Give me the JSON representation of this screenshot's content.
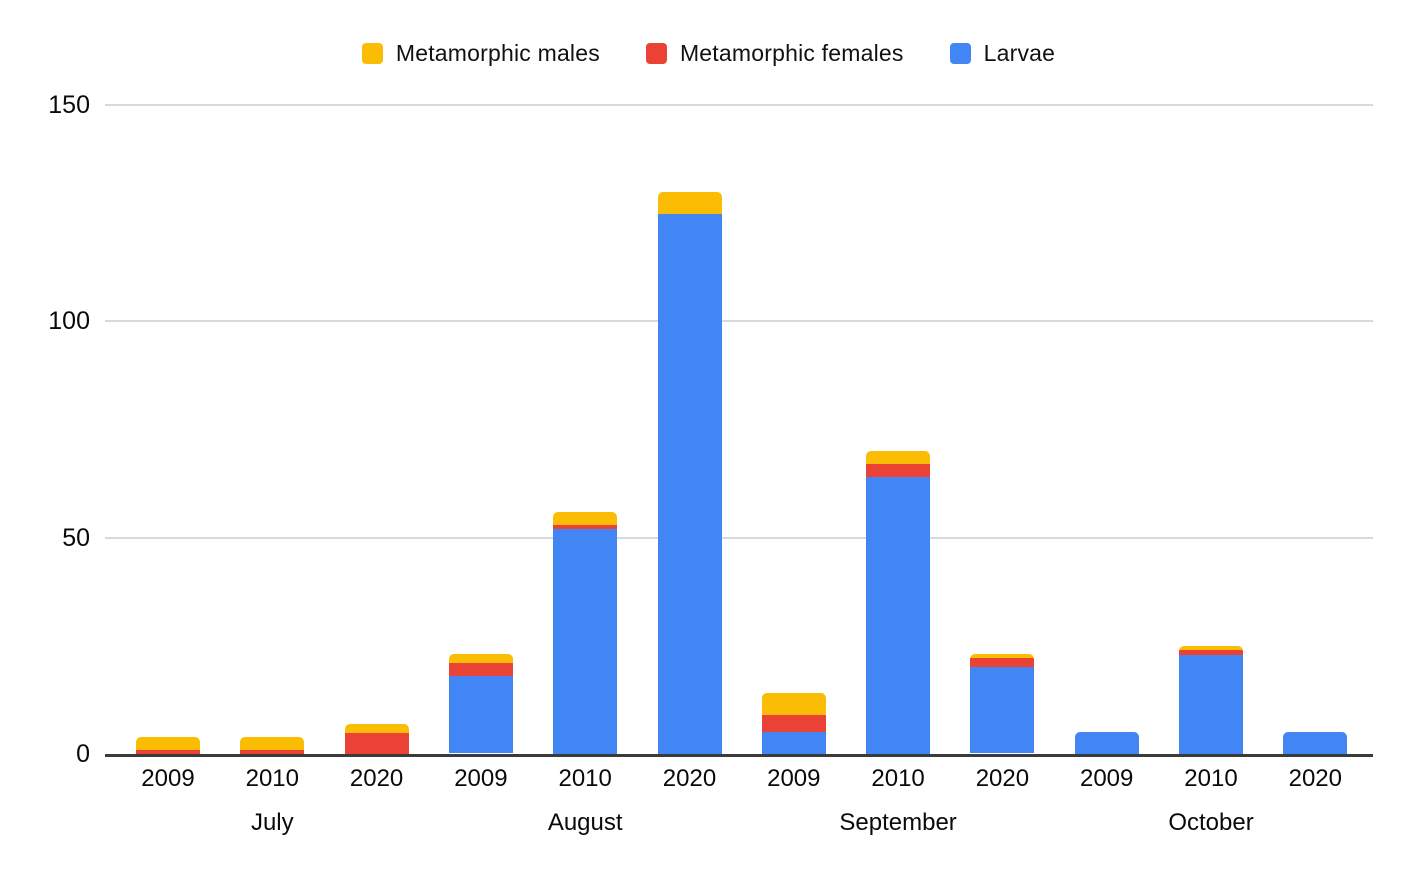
{
  "chart_data": {
    "type": "bar",
    "stacked": true,
    "title": "",
    "xlabel": "",
    "ylabel": "",
    "ylim": [
      0,
      150
    ],
    "yticks": [
      0,
      50,
      100,
      150
    ],
    "grid": true,
    "legend_position": "top",
    "series": [
      {
        "name": "Metamorphic males",
        "key": "males",
        "color": "#FBBC04"
      },
      {
        "name": "Metamorphic females",
        "key": "females",
        "color": "#EA4335"
      },
      {
        "name": "Larvae",
        "key": "larvae",
        "color": "#4285F4"
      }
    ],
    "stack_order_bottom_to_top": [
      "larvae",
      "females",
      "males"
    ],
    "groups": [
      {
        "label": "July",
        "bars": [
          {
            "year": "2009",
            "values": {
              "larvae": 0,
              "females": 1,
              "males": 3
            }
          },
          {
            "year": "2010",
            "values": {
              "larvae": 0,
              "females": 1,
              "males": 3
            }
          },
          {
            "year": "2020",
            "values": {
              "larvae": 0,
              "females": 5,
              "males": 2
            }
          }
        ]
      },
      {
        "label": "August",
        "bars": [
          {
            "year": "2009",
            "values": {
              "larvae": 18,
              "females": 3,
              "males": 2
            }
          },
          {
            "year": "2010",
            "values": {
              "larvae": 52,
              "females": 1,
              "males": 3
            }
          },
          {
            "year": "2020",
            "values": {
              "larvae": 125,
              "females": 0,
              "males": 5
            }
          }
        ]
      },
      {
        "label": "September",
        "bars": [
          {
            "year": "2009",
            "values": {
              "larvae": 5,
              "females": 4,
              "males": 5
            }
          },
          {
            "year": "2010",
            "values": {
              "larvae": 64,
              "females": 3,
              "males": 3
            }
          },
          {
            "year": "2020",
            "values": {
              "larvae": 20,
              "females": 2,
              "males": 1
            }
          }
        ]
      },
      {
        "label": "October",
        "bars": [
          {
            "year": "2009",
            "values": {
              "larvae": 5,
              "females": 0,
              "males": 0
            }
          },
          {
            "year": "2010",
            "values": {
              "larvae": 23,
              "females": 1,
              "males": 1
            }
          },
          {
            "year": "2020",
            "values": {
              "larvae": 5,
              "females": 0,
              "males": 0
            }
          }
        ]
      }
    ],
    "colors": {
      "grid": "#d9d9d9",
      "axis": "#3b3b3b",
      "text": "#000000",
      "background": "#ffffff"
    }
  }
}
